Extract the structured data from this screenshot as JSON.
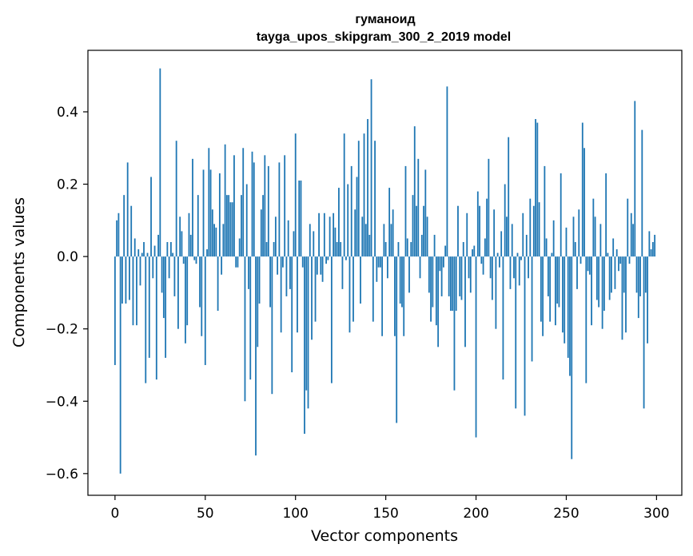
{
  "chart_data": {
    "type": "bar",
    "title": "гуманоид",
    "subtitle": "tayga_upos_skipgram_300_2_2019 model",
    "xlabel": "Vector components",
    "ylabel": "Components values",
    "xlim": [
      -15,
      314
    ],
    "ylim": [
      -0.66,
      0.57
    ],
    "xticks": [
      0,
      50,
      100,
      150,
      200,
      250,
      300
    ],
    "yticks": [
      -0.6,
      -0.4,
      -0.2,
      0.0,
      0.2,
      0.4
    ],
    "xtick_labels": [
      "0",
      "50",
      "100",
      "150",
      "200",
      "250",
      "300"
    ],
    "ytick_labels": [
      "−0.6",
      "−0.4",
      "−0.2",
      "0.0",
      "0.2",
      "0.4"
    ],
    "bar_color": "#1f77b4",
    "grid": false,
    "values": [
      -0.3,
      0.1,
      0.12,
      -0.6,
      -0.13,
      0.17,
      -0.13,
      0.26,
      -0.12,
      0.14,
      -0.19,
      0.05,
      -0.19,
      0.02,
      -0.08,
      0.01,
      0.04,
      -0.35,
      0.01,
      -0.28,
      0.22,
      -0.06,
      0.03,
      -0.34,
      0.06,
      0.52,
      -0.1,
      -0.17,
      -0.28,
      0.04,
      -0.06,
      0.04,
      0.01,
      -0.11,
      0.32,
      -0.2,
      0.11,
      0.07,
      -0.02,
      -0.24,
      -0.19,
      0.12,
      0.06,
      0.27,
      -0.01,
      -0.02,
      0.17,
      -0.14,
      -0.22,
      0.24,
      -0.3,
      0.02,
      0.3,
      0.24,
      0.13,
      0.09,
      0.08,
      -0.15,
      0.23,
      -0.05,
      0.09,
      0.31,
      0.17,
      0.17,
      0.15,
      0.15,
      0.28,
      -0.03,
      -0.03,
      0.05,
      0.17,
      0.3,
      -0.4,
      0.2,
      -0.09,
      -0.34,
      0.29,
      0.26,
      -0.55,
      -0.25,
      -0.13,
      0.13,
      0.17,
      0.28,
      0.04,
      0.25,
      -0.14,
      -0.38,
      0.04,
      0.11,
      -0.05,
      0.26,
      -0.21,
      -0.03,
      0.28,
      -0.11,
      0.1,
      -0.09,
      -0.32,
      0.07,
      0.34,
      -0.21,
      0.21,
      0.21,
      -0.03,
      -0.49,
      -0.37,
      -0.42,
      0.09,
      -0.23,
      0.07,
      -0.18,
      -0.05,
      0.12,
      -0.05,
      -0.07,
      0.12,
      -0.02,
      -0.01,
      0.11,
      -0.35,
      0.12,
      0.08,
      0.04,
      0.19,
      0.04,
      -0.09,
      0.34,
      -0.01,
      0.2,
      -0.21,
      0.25,
      -0.18,
      0.13,
      0.22,
      0.32,
      -0.13,
      0.11,
      0.34,
      0.09,
      0.38,
      0.06,
      0.49,
      -0.18,
      0.32,
      -0.07,
      -0.03,
      -0.03,
      -0.22,
      0.09,
      0.04,
      -0.06,
      0.19,
      0.09,
      0.13,
      -0.22,
      -0.46,
      0.04,
      -0.13,
      -0.14,
      -0.22,
      0.25,
      0.05,
      -0.1,
      0.04,
      0.17,
      0.36,
      0.14,
      0.27,
      -0.06,
      0.06,
      0.14,
      0.24,
      0.11,
      -0.1,
      -0.18,
      -0.14,
      0.06,
      -0.19,
      -0.25,
      -0.04,
      -0.11,
      -0.03,
      0.03,
      0.47,
      -0.11,
      -0.15,
      -0.15,
      -0.37,
      -0.15,
      0.14,
      -0.11,
      -0.12,
      0.04,
      -0.25,
      0.12,
      -0.06,
      -0.1,
      0.02,
      0.03,
      -0.5,
      0.18,
      0.14,
      -0.02,
      -0.05,
      0.05,
      0.16,
      0.27,
      -0.06,
      -0.12,
      0.13,
      -0.2,
      0.01,
      -0.03,
      0.07,
      -0.34,
      0.2,
      0.11,
      0.33,
      -0.09,
      0.09,
      -0.06,
      -0.42,
      0.01,
      -0.08,
      -0.01,
      0.12,
      -0.44,
      0.06,
      -0.06,
      0.16,
      -0.29,
      0.14,
      0.38,
      0.37,
      0.15,
      -0.18,
      -0.22,
      0.25,
      0.05,
      -0.11,
      -0.18,
      0.01,
      0.1,
      -0.19,
      -0.13,
      -0.14,
      0.23,
      -0.21,
      -0.24,
      0.08,
      -0.28,
      -0.33,
      -0.56,
      0.11,
      0.04,
      -0.09,
      0.13,
      -0.02,
      0.37,
      0.3,
      -0.35,
      -0.04,
      -0.05,
      -0.19,
      0.16,
      0.11,
      -0.12,
      -0.14,
      0.09,
      -0.2,
      -0.15,
      0.23,
      0.01,
      -0.12,
      -0.1,
      0.05,
      -0.09,
      0.02,
      -0.04,
      -0.02,
      -0.23,
      -0.1,
      -0.21,
      0.16,
      -0.02,
      0.12,
      0.09,
      0.43,
      -0.1,
      -0.17,
      -0.11,
      0.35,
      -0.42,
      -0.1,
      -0.24,
      0.07,
      0.02,
      0.04,
      0.06
    ]
  }
}
